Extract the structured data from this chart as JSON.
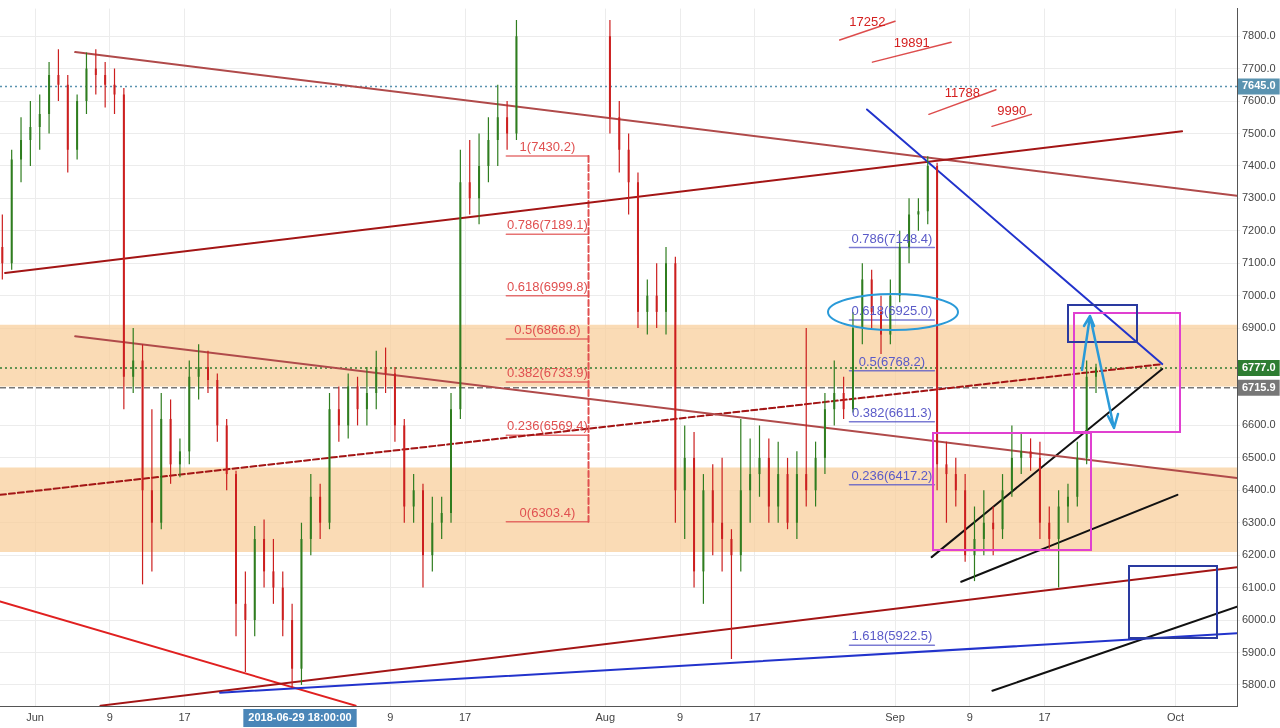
{
  "chart_data": {
    "type": "candlestick",
    "x": [
      "2018-05-28T12:00",
      "2018-05-29T12:00",
      "2018-05-30T12:00",
      "2018-05-31T12:00",
      "2018-06-01T12:00",
      "2018-06-02T12:00",
      "2018-06-03T12:00",
      "2018-06-04T12:00",
      "2018-06-05T12:00",
      "2018-06-06T12:00",
      "2018-06-07T12:00",
      "2018-06-08T12:00",
      "2018-06-09T12:00",
      "2018-06-10T12:00",
      "2018-06-11T12:00",
      "2018-06-12T12:00",
      "2018-06-13T12:00",
      "2018-06-14T12:00",
      "2018-06-15T12:00",
      "2018-06-16T12:00",
      "2018-06-17T12:00",
      "2018-06-18T12:00",
      "2018-06-19T12:00",
      "2018-06-20T12:00",
      "2018-06-21T12:00",
      "2018-06-22T12:00",
      "2018-06-23T12:00",
      "2018-06-24T12:00",
      "2018-06-25T12:00",
      "2018-06-26T12:00",
      "2018-06-27T12:00",
      "2018-06-28T12:00",
      "2018-06-29T12:00",
      "2018-06-30T12:00",
      "2018-07-01T12:00",
      "2018-07-02T12:00",
      "2018-07-03T12:00",
      "2018-07-04T12:00",
      "2018-07-05T12:00",
      "2018-07-06T12:00",
      "2018-07-07T12:00",
      "2018-07-08T12:00",
      "2018-07-09T12:00",
      "2018-07-10T12:00",
      "2018-07-11T12:00",
      "2018-07-12T12:00",
      "2018-07-13T12:00",
      "2018-07-14T12:00",
      "2018-07-15T12:00",
      "2018-07-16T12:00",
      "2018-07-17T12:00",
      "2018-07-18T12:00",
      "2018-07-19T12:00",
      "2018-07-20T12:00",
      "2018-07-21T12:00",
      "2018-07-22T12:00",
      "2018-08-01T12:00",
      "2018-08-02T12:00",
      "2018-08-03T12:00",
      "2018-08-04T12:00",
      "2018-08-05T12:00",
      "2018-08-06T12:00",
      "2018-08-07T12:00",
      "2018-08-08T12:00",
      "2018-08-09T12:00",
      "2018-08-10T12:00",
      "2018-08-11T12:00",
      "2018-08-12T12:00",
      "2018-08-13T12:00",
      "2018-08-14T12:00",
      "2018-08-15T12:00",
      "2018-08-16T12:00",
      "2018-08-17T12:00",
      "2018-08-18T12:00",
      "2018-08-19T12:00",
      "2018-08-20T12:00",
      "2018-08-21T12:00",
      "2018-08-22T12:00",
      "2018-08-23T12:00",
      "2018-08-24T12:00",
      "2018-08-25T12:00",
      "2018-08-26T12:00",
      "2018-08-27T12:00",
      "2018-08-28T12:00",
      "2018-08-29T12:00",
      "2018-08-30T12:00",
      "2018-08-31T12:00",
      "2018-09-01T12:00",
      "2018-09-02T12:00",
      "2018-09-03T12:00",
      "2018-09-04T12:00",
      "2018-09-05T12:00",
      "2018-09-06T12:00",
      "2018-09-07T12:00",
      "2018-09-08T12:00",
      "2018-09-09T12:00",
      "2018-09-10T12:00",
      "2018-09-11T12:00",
      "2018-09-12T12:00",
      "2018-09-13T12:00",
      "2018-09-14T12:00",
      "2018-09-15T12:00",
      "2018-09-16T12:00",
      "2018-09-17T12:00",
      "2018-09-18T12:00",
      "2018-09-19T12:00",
      "2018-09-20T12:00",
      "2018-09-21T12:00",
      "2018-09-22T12:00"
    ],
    "ohlc": [
      [
        7150,
        7250,
        7050,
        7100
      ],
      [
        7100,
        7450,
        7080,
        7420
      ],
      [
        7420,
        7550,
        7350,
        7480
      ],
      [
        7480,
        7600,
        7400,
        7520
      ],
      [
        7520,
        7620,
        7450,
        7560
      ],
      [
        7560,
        7720,
        7500,
        7680
      ],
      [
        7680,
        7760,
        7600,
        7650
      ],
      [
        7650,
        7680,
        7380,
        7450
      ],
      [
        7450,
        7620,
        7420,
        7600
      ],
      [
        7600,
        7750,
        7560,
        7700
      ],
      [
        7700,
        7760,
        7620,
        7680
      ],
      [
        7680,
        7720,
        7580,
        7650
      ],
      [
        7650,
        7700,
        7560,
        7620
      ],
      [
        7620,
        7640,
        6650,
        6750
      ],
      [
        6750,
        6900,
        6700,
        6800
      ],
      [
        6800,
        6850,
        6110,
        6400
      ],
      [
        6400,
        6650,
        6150,
        6300
      ],
      [
        6300,
        6700,
        6280,
        6620
      ],
      [
        6620,
        6680,
        6420,
        6480
      ],
      [
        6480,
        6560,
        6440,
        6520
      ],
      [
        6520,
        6800,
        6480,
        6750
      ],
      [
        6750,
        6850,
        6680,
        6780
      ],
      [
        6780,
        6830,
        6700,
        6740
      ],
      [
        6740,
        6760,
        6550,
        6600
      ],
      [
        6600,
        6620,
        6400,
        6450
      ],
      [
        6450,
        6460,
        5950,
        6050
      ],
      [
        6050,
        6150,
        5840,
        6000
      ],
      [
        6000,
        6290,
        5950,
        6250
      ],
      [
        6250,
        6310,
        6100,
        6150
      ],
      [
        6150,
        6250,
        6050,
        6100
      ],
      [
        6100,
        6150,
        5950,
        6000
      ],
      [
        6000,
        6050,
        5790,
        5850
      ],
      [
        5850,
        6300,
        5800,
        6250
      ],
      [
        6250,
        6450,
        6200,
        6380
      ],
      [
        6380,
        6420,
        6250,
        6300
      ],
      [
        6300,
        6700,
        6280,
        6650
      ],
      [
        6650,
        6720,
        6550,
        6600
      ],
      [
        6600,
        6760,
        6560,
        6720
      ],
      [
        6720,
        6750,
        6600,
        6650
      ],
      [
        6650,
        6780,
        6600,
        6700
      ],
      [
        6700,
        6830,
        6650,
        6780
      ],
      [
        6780,
        6840,
        6700,
        6760
      ],
      [
        6760,
        6780,
        6550,
        6600
      ],
      [
        6600,
        6620,
        6300,
        6350
      ],
      [
        6350,
        6450,
        6300,
        6400
      ],
      [
        6400,
        6420,
        6100,
        6200
      ],
      [
        6200,
        6380,
        6150,
        6300
      ],
      [
        6300,
        6380,
        6250,
        6330
      ],
      [
        6330,
        6700,
        6300,
        6650
      ],
      [
        6650,
        7450,
        6620,
        7350
      ],
      [
        7350,
        7480,
        7250,
        7300
      ],
      [
        7300,
        7500,
        7220,
        7400
      ],
      [
        7400,
        7550,
        7350,
        7480
      ],
      [
        7480,
        7650,
        7400,
        7550
      ],
      [
        7550,
        7600,
        7450,
        7500
      ],
      [
        7500,
        7850,
        7480,
        7800
      ],
      [
        7800,
        7850,
        7500,
        7550
      ],
      [
        7550,
        7600,
        7380,
        7450
      ],
      [
        7450,
        7500,
        7250,
        7350
      ],
      [
        7350,
        7380,
        6900,
        6950
      ],
      [
        6950,
        7050,
        6880,
        7000
      ],
      [
        7000,
        7100,
        6900,
        6950
      ],
      [
        6950,
        7150,
        6880,
        7100
      ],
      [
        7100,
        7120,
        6300,
        6400
      ],
      [
        6400,
        6600,
        6250,
        6500
      ],
      [
        6500,
        6580,
        6100,
        6150
      ],
      [
        6150,
        6450,
        6050,
        6400
      ],
      [
        6400,
        6480,
        6200,
        6300
      ],
      [
        6300,
        6500,
        6150,
        6250
      ],
      [
        6250,
        6280,
        5880,
        6200
      ],
      [
        6200,
        6620,
        6150,
        6400
      ],
      [
        6400,
        6560,
        6300,
        6450
      ],
      [
        6450,
        6600,
        6380,
        6500
      ],
      [
        6500,
        6560,
        6300,
        6350
      ],
      [
        6350,
        6550,
        6300,
        6450
      ],
      [
        6450,
        6500,
        6280,
        6300
      ],
      [
        6300,
        6520,
        6250,
        6450
      ],
      [
        6450,
        6900,
        6350,
        6400
      ],
      [
        6400,
        6550,
        6350,
        6500
      ],
      [
        6500,
        6700,
        6450,
        6650
      ],
      [
        6650,
        6800,
        6600,
        6700
      ],
      [
        6700,
        6750,
        6620,
        6650
      ],
      [
        6650,
        6950,
        6640,
        6900
      ],
      [
        6900,
        7100,
        6850,
        7050
      ],
      [
        7050,
        7080,
        6900,
        6950
      ],
      [
        6950,
        7000,
        6820,
        6880
      ],
      [
        6880,
        7050,
        6850,
        7000
      ],
      [
        7000,
        7200,
        6980,
        7150
      ],
      [
        7150,
        7300,
        7100,
        7250
      ],
      [
        7250,
        7300,
        7200,
        7260
      ],
      [
        7260,
        7430,
        7220,
        7400
      ],
      [
        7400,
        7410,
        6400,
        6480
      ],
      [
        6480,
        6550,
        6300,
        6450
      ],
      [
        6450,
        6500,
        6350,
        6400
      ],
      [
        6400,
        6450,
        6180,
        6200
      ],
      [
        6200,
        6350,
        6120,
        6250
      ],
      [
        6250,
        6400,
        6200,
        6300
      ],
      [
        6300,
        6350,
        6200,
        6280
      ],
      [
        6280,
        6450,
        6250,
        6400
      ],
      [
        6400,
        6600,
        6380,
        6500
      ],
      [
        6500,
        6580,
        6450,
        6520
      ],
      [
        6520,
        6560,
        6460,
        6500
      ],
      [
        6500,
        6550,
        6250,
        6300
      ],
      [
        6300,
        6350,
        6220,
        6250
      ],
      [
        6250,
        6400,
        6100,
        6350
      ],
      [
        6350,
        6420,
        6300,
        6380
      ],
      [
        6380,
        6550,
        6350,
        6500
      ],
      [
        6500,
        6800,
        6480,
        6750
      ],
      [
        6750,
        6790,
        6700,
        6777
      ]
    ],
    "series": [
      {
        "type": "line",
        "x": [
          "2018-08-29",
          "2018-09-29T14:00"
        ],
        "values": [
          7574,
          6789
        ],
        "color": "#2233cc"
      },
      {
        "type": "line",
        "x": [
          "2018-05-28T19:00",
          "2018-10-01T17:00"
        ],
        "values": [
          7070,
          7507
        ],
        "color": "#a31515"
      },
      {
        "type": "line",
        "x": [
          "2018-06-05T07:00",
          "2018-10-07T14:00"
        ],
        "values": [
          7751,
          7308
        ],
        "color": "#b04a4a"
      },
      {
        "type": "line",
        "x": [
          "2018-06-20T19:00",
          "2018-10-07T14:00"
        ],
        "values": [
          5776,
          5959
        ],
        "color": "#2233cc"
      },
      {
        "type": "line",
        "x": [
          "2018-06-08",
          "2018-10-07T14:00"
        ],
        "values": [
          5736,
          6163
        ],
        "color": "#a31515"
      },
      {
        "type": "line",
        "x": [
          "2018-05-28T06:00",
          "2018-07-05T07:00"
        ],
        "values": [
          6057,
          5736
        ],
        "color": "#e02020"
      },
      {
        "type": "line",
        "x": [
          "2018-06-05T07:00",
          "2018-10-07T14:00"
        ],
        "values": [
          6875,
          6438
        ],
        "color": "#b04a4a"
      },
      {
        "type": "line",
        "x": [
          "2018-05-28T06:00",
          "2018-09-29T14:00"
        ],
        "values": [
          6386,
          6789
        ],
        "color": "#a31515",
        "line_style": "dashed"
      },
      {
        "type": "line",
        "x": [
          "2018-09-04T22:00",
          "2018-09-29T14:00"
        ],
        "values": [
          6194,
          6774
        ],
        "color": "#111111"
      },
      {
        "type": "line",
        "x": [
          "2018-09-08T02:00",
          "2018-10-01T05:00"
        ],
        "values": [
          6118,
          6386
        ],
        "color": "#111111"
      },
      {
        "type": "line",
        "x": [
          "2018-09-11T10:00",
          "2018-10-07T14:00"
        ],
        "values": [
          5782,
          6041
        ],
        "color": "#111111"
      },
      {
        "type": "line",
        "x": [
          "2018-07-30T05:00",
          "2018-07-30T05:00"
        ],
        "values": [
          7430.2,
          6303.4
        ],
        "color": "#e05050",
        "line_style": "dashed"
      },
      {
        "type": "line",
        "name": "1(7430.2)",
        "x": [
          "2018-07-21T10:00",
          "2018-07-30T05:00"
        ],
        "values": [
          7430.2,
          7430.2
        ],
        "color": "#e05050"
      },
      {
        "type": "line",
        "name": "0.786(7189.1)",
        "x": [
          "2018-07-21T10:00",
          "2018-07-30T05:00"
        ],
        "values": [
          7189.1,
          7189.1
        ],
        "color": "#e05050"
      },
      {
        "type": "line",
        "name": "0.618(6999.8)",
        "x": [
          "2018-07-21T10:00",
          "2018-07-30T05:00"
        ],
        "values": [
          6999.8,
          6999.8
        ],
        "color": "#e05050"
      },
      {
        "type": "line",
        "name": "0.5(6866.8)",
        "x": [
          "2018-07-21T10:00",
          "2018-07-30T05:00"
        ],
        "values": [
          6866.8,
          6866.8
        ],
        "color": "#e05050"
      },
      {
        "type": "line",
        "name": "0.382(6733.9)",
        "x": [
          "2018-07-21T10:00",
          "2018-07-30T05:00"
        ],
        "values": [
          6733.9,
          6733.9
        ],
        "color": "#e05050"
      },
      {
        "type": "line",
        "name": "0.236(6569.4)",
        "x": [
          "2018-07-21T10:00",
          "2018-07-30T05:00"
        ],
        "values": [
          6569.4,
          6569.4
        ],
        "color": "#e05050"
      },
      {
        "type": "line",
        "name": "0(6303.4)",
        "x": [
          "2018-07-21T10:00",
          "2018-07-30T05:00"
        ],
        "values": [
          6303.4,
          6303.4
        ],
        "color": "#e05050"
      },
      {
        "type": "line",
        "name": "0.786(7148.4)",
        "x": [
          "2018-08-27T03:00",
          "2018-09-05T05:00"
        ],
        "values": [
          7148.4,
          7148.4
        ],
        "color": "#5a5ac8"
      },
      {
        "type": "line",
        "name": "0.618(6925.0)",
        "x": [
          "2018-08-27T03:00",
          "2018-09-05T05:00"
        ],
        "values": [
          6925.0,
          6925.0
        ],
        "color": "#5a5ac8"
      },
      {
        "type": "line",
        "name": "0.5(6768.2)",
        "x": [
          "2018-08-27T03:00",
          "2018-09-05T05:00"
        ],
        "values": [
          6768.2,
          6768.2
        ],
        "color": "#5a5ac8"
      },
      {
        "type": "line",
        "name": "0.382(6611.3)",
        "x": [
          "2018-08-27T03:00",
          "2018-09-05T05:00"
        ],
        "values": [
          6611.3,
          6611.3
        ],
        "color": "#5a5ac8"
      },
      {
        "type": "line",
        "name": "0.236(6417.2)",
        "x": [
          "2018-08-27T03:00",
          "2018-09-05T05:00"
        ],
        "values": [
          6417.2,
          6417.2
        ],
        "color": "#5a5ac8"
      },
      {
        "type": "line",
        "name": "1.618(5922.5)",
        "x": [
          "2018-08-27T03:00",
          "2018-09-05T05:00"
        ],
        "values": [
          5922.5,
          5922.5
        ],
        "color": "#5a5ac8"
      },
      {
        "type": "line",
        "name": "17252",
        "x": [
          "2018-08-26T02:00",
          "2018-09-01T00:00"
        ],
        "values": [
          7788,
          7846
        ],
        "color": "#d42020"
      },
      {
        "type": "line",
        "name": "19891",
        "x": [
          "2018-08-29T14:00",
          "2018-09-07T00:00"
        ],
        "values": [
          7720,
          7781
        ],
        "color": "#d42020"
      },
      {
        "type": "line",
        "name": "11788",
        "x": [
          "2018-09-04T15:00",
          "2018-09-11T19:00"
        ],
        "values": [
          7559,
          7635
        ],
        "color": "#d42020"
      },
      {
        "type": "line",
        "name": "9990",
        "x": [
          "2018-09-11T09:00",
          "2018-09-15T14:00"
        ],
        "values": [
          7522,
          7559
        ],
        "color": "#d42020"
      }
    ],
    "xlim": [
      "2018-05-28T06:00",
      "2018-10-07T14:00"
    ],
    "xticks": [
      {
        "value": "2018-06-01",
        "label": "Jun"
      },
      {
        "value": "2018-06-09",
        "label": "9"
      },
      {
        "value": "2018-06-17",
        "label": "17"
      },
      {
        "value": "2018-07-09",
        "label": "9"
      },
      {
        "value": "2018-07-17",
        "label": "17"
      },
      {
        "value": "2018-08-01",
        "label": "Aug"
      },
      {
        "value": "2018-08-09",
        "label": "9"
      },
      {
        "value": "2018-08-17",
        "label": "17"
      },
      {
        "value": "2018-09-01",
        "label": "Sep"
      },
      {
        "value": "2018-09-09",
        "label": "9"
      },
      {
        "value": "2018-09-17",
        "label": "17"
      },
      {
        "value": "2018-10-01",
        "label": "Oct"
      }
    ],
    "ylim": [
      5735,
      7885
    ],
    "yticks": [
      {
        "value": 5800,
        "label": "5800.0"
      },
      {
        "value": 5900,
        "label": "5900.0"
      },
      {
        "value": 6000,
        "label": "6000.0"
      },
      {
        "value": 6100,
        "label": "6100.0"
      },
      {
        "value": 6200,
        "label": "6200.0"
      },
      {
        "value": 6300,
        "label": "6300.0"
      },
      {
        "value": 6400,
        "label": "6400.0"
      },
      {
        "value": 6500,
        "label": "6500.0"
      },
      {
        "value": 6600,
        "label": "6600.0"
      },
      {
        "value": 6900,
        "label": "6900.0"
      },
      {
        "value": 7000,
        "label": "7000.0"
      },
      {
        "value": 7100,
        "label": "7100.0"
      },
      {
        "value": 7200,
        "label": "7200.0"
      },
      {
        "value": 7300,
        "label": "7300.0"
      },
      {
        "value": 7400,
        "label": "7400.0"
      },
      {
        "value": 7500,
        "label": "7500.0"
      },
      {
        "value": 7600,
        "label": "7600.0"
      },
      {
        "value": 7700,
        "label": "7700.0"
      },
      {
        "value": 7800,
        "label": "7800.0"
      }
    ],
    "bands": [
      {
        "axis": "y",
        "from": 6210,
        "to": 6470,
        "color": "#f8cf9c"
      },
      {
        "axis": "y",
        "from": 6720,
        "to": 6910,
        "color": "#f8cf9c"
      }
    ],
    "ref_lines": [
      {
        "axis": "y",
        "value": 7645,
        "label": "7645.0",
        "color": "#5a93b0",
        "line_style": "dotted"
      },
      {
        "axis": "y",
        "value": 6777,
        "label": "6777.0",
        "color": "#2e7d32",
        "line_style": "dotted"
      },
      {
        "axis": "y",
        "value": 6715.9,
        "label": "6715.9",
        "color": "#777777",
        "line_style": "dashed"
      }
    ],
    "annotations": [
      "2018-06-29 18:00:00"
    ],
    "grid": true,
    "legend": false,
    "marker": "none"
  }
}
